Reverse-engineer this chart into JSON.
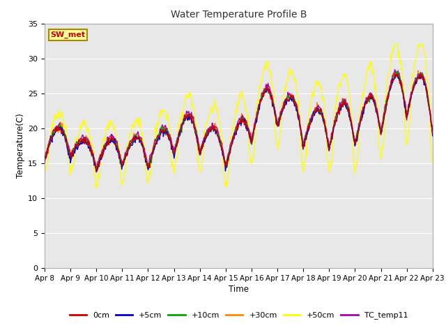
{
  "title": "Water Temperature Profile B",
  "xlabel": "Time",
  "ylabel": "Temperature(C)",
  "ylim": [
    0,
    35
  ],
  "yticks": [
    0,
    5,
    10,
    15,
    20,
    25,
    30,
    35
  ],
  "xtick_labels": [
    "Apr 8",
    "Apr 9",
    "Apr 10",
    "Apr 11",
    "Apr 12",
    "Apr 13",
    "Apr 14",
    "Apr 15",
    "Apr 16",
    "Apr 17",
    "Apr 18",
    "Apr 19",
    "Apr 20",
    "Apr 21",
    "Apr 22",
    "Apr 23"
  ],
  "bg_color": "#dcdcdc",
  "fig_color": "#ffffff",
  "plot_bg": "#e8e8e8",
  "series_colors": {
    "0cm": "#cc0000",
    "+5cm": "#0000cc",
    "+10cm": "#00aa00",
    "+30cm": "#ff8800",
    "+50cm": "#ffff00",
    "TC_temp11": "#aa00aa"
  },
  "annotation_text": "SW_met",
  "annotation_color": "#cc0000",
  "annotation_bg": "#ffff99",
  "annotation_border": "#aa8800"
}
